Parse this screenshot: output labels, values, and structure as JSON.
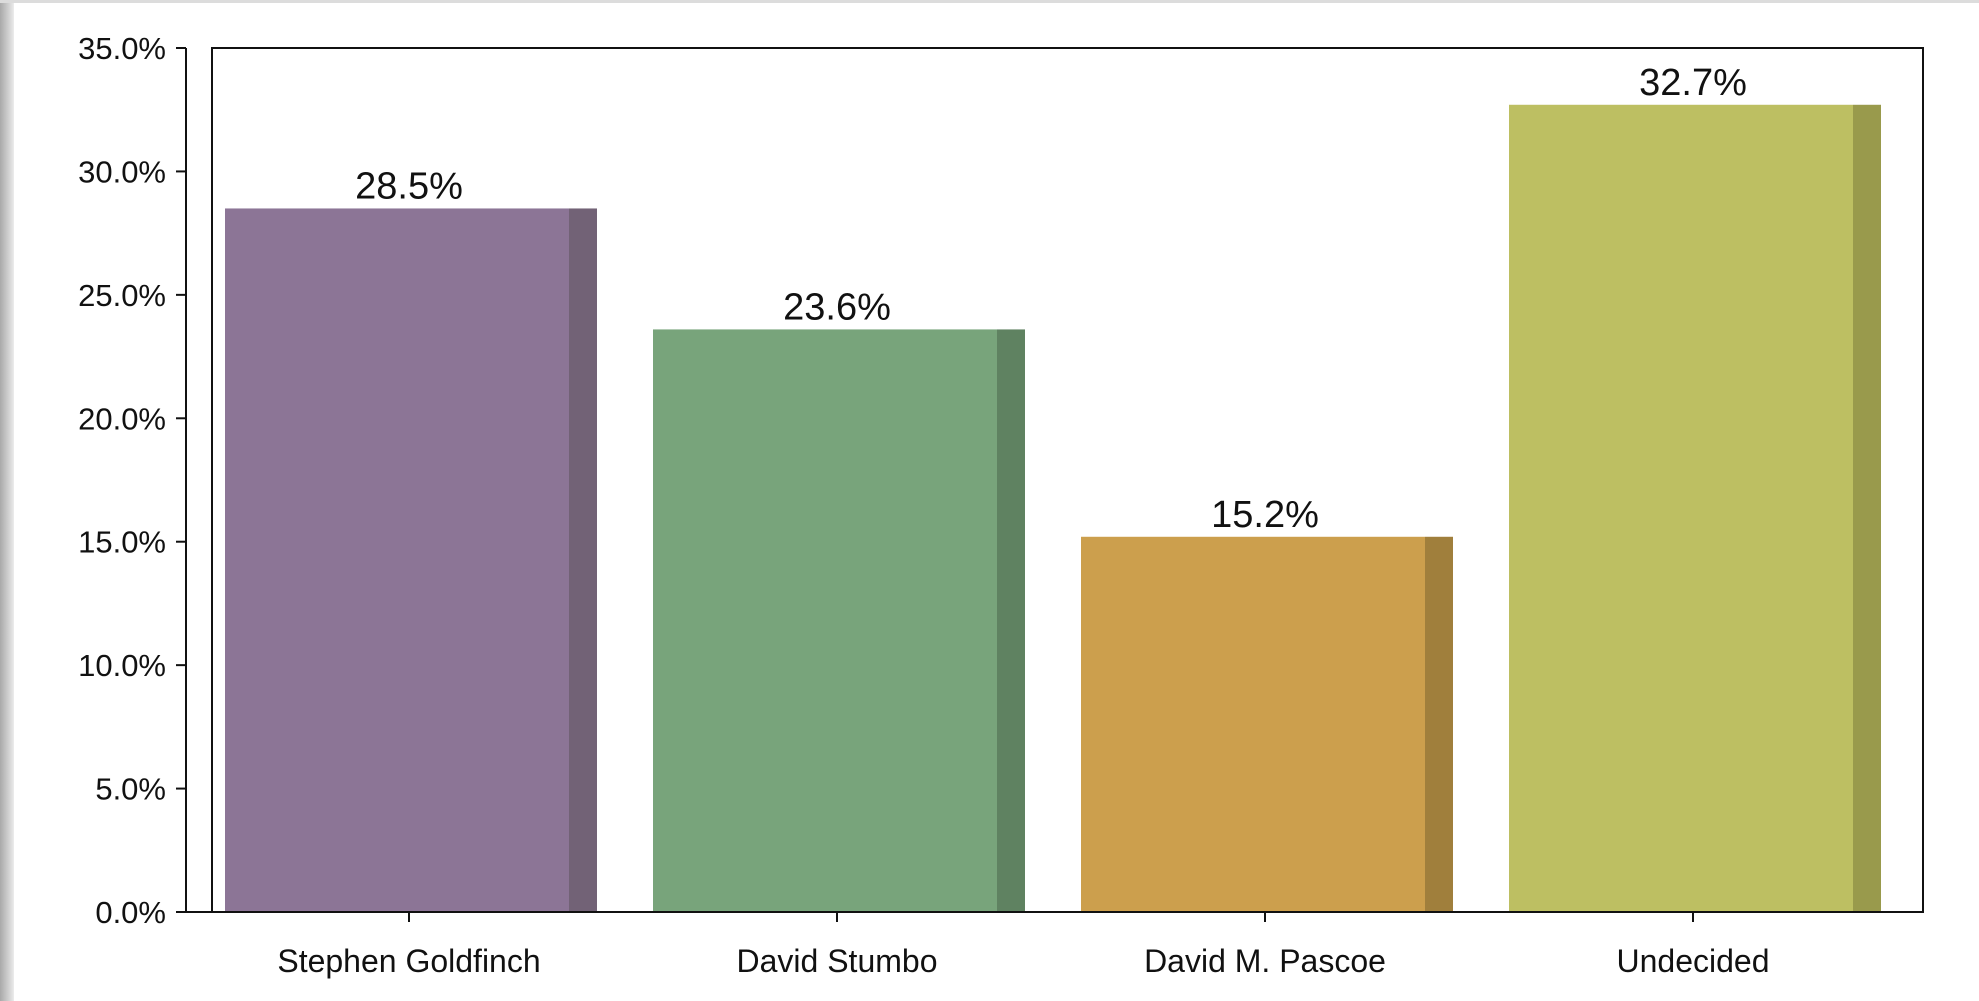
{
  "chart_data": {
    "type": "bar",
    "categories": [
      "Stephen Goldfinch",
      "David Stumbo",
      "David M. Pascoe",
      "Undecided"
    ],
    "values": [
      28.5,
      23.6,
      15.2,
      32.7
    ],
    "value_labels": [
      "28.5%",
      "23.6%",
      "15.2%",
      "32.7%"
    ],
    "colors": [
      "#8c7596",
      "#78a47b",
      "#cc9f4d",
      "#bdbf62"
    ],
    "shade_colors": [
      "#726276",
      "#5f8261",
      "#a07f3c",
      "#999a4c"
    ],
    "ylim": [
      0,
      35
    ],
    "yticks": [
      0,
      5,
      10,
      15,
      20,
      25,
      30,
      35
    ],
    "ytick_labels": [
      "0.0%",
      "5.0%",
      "10.0%",
      "15.0%",
      "20.0%",
      "25.0%",
      "30.0%",
      "35.0%"
    ],
    "grid": false,
    "legend": "none"
  }
}
